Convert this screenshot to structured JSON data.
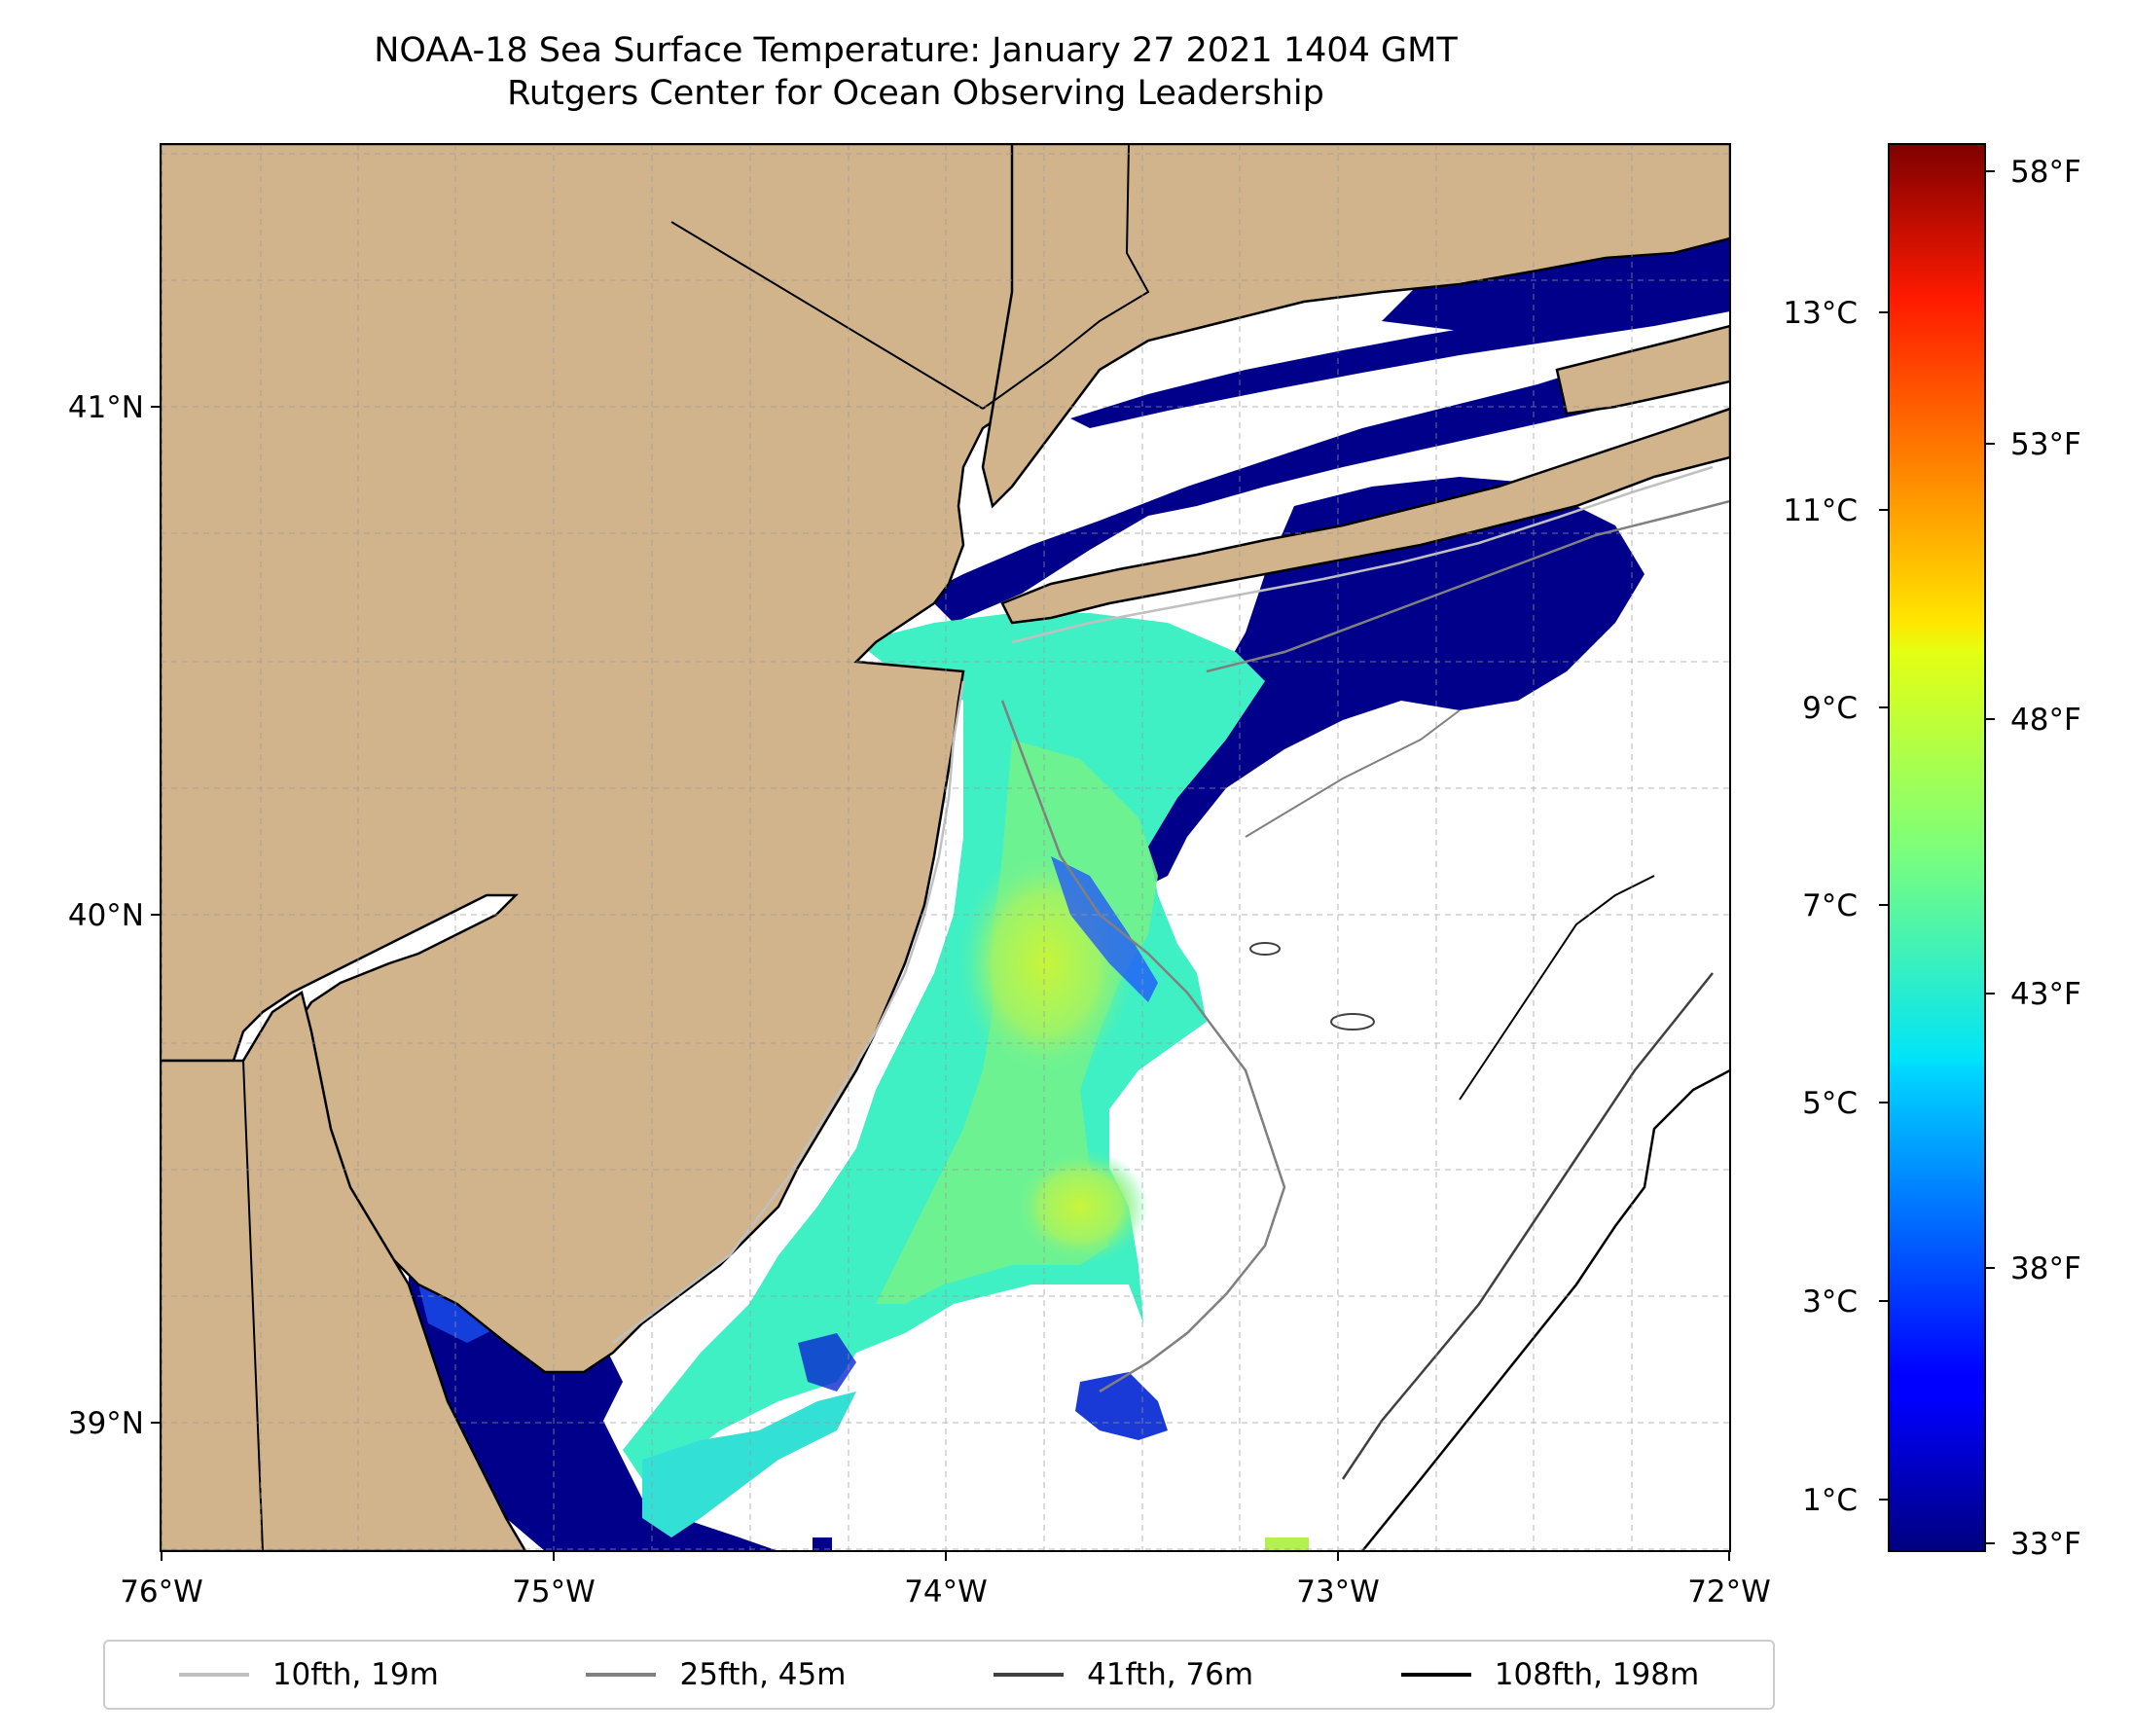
{
  "title": "NOAA-18 Sea Surface Temperature: January 27 2021 1404 GMT",
  "subtitle": "Rutgers Center for Ocean Observing Leadership",
  "map": {
    "lon_range": [
      -76,
      -72
    ],
    "lat_range": [
      38.75,
      41.52
    ],
    "lon_ticks": [
      "76°W",
      "75°W",
      "74°W",
      "73°W",
      "72°W"
    ],
    "lat_ticks": [
      "41°N",
      "40°N",
      "39°N"
    ],
    "land_color": "#d2b48c",
    "water_no_data_color": "#ffffff",
    "gridlines": true
  },
  "colorbar": {
    "colormap": "jet",
    "celsius_ticks": [
      "1°C",
      "3°C",
      "5°C",
      "7°C",
      "9°C",
      "11°C",
      "13°C"
    ],
    "fahrenheit_ticks": [
      "33°F",
      "38°F",
      "43°F",
      "48°F",
      "53°F",
      "58°F"
    ],
    "range_celsius": [
      0.6,
      14.8
    ]
  },
  "legend": {
    "items": [
      {
        "label": "10fth, 19m",
        "color": "#c0c0c0"
      },
      {
        "label": "25fth, 45m",
        "color": "#808080"
      },
      {
        "label": "41fth, 76m",
        "color": "#404040"
      },
      {
        "label": "108fth, 198m",
        "color": "#000000"
      }
    ],
    "placement": "bottom"
  }
}
